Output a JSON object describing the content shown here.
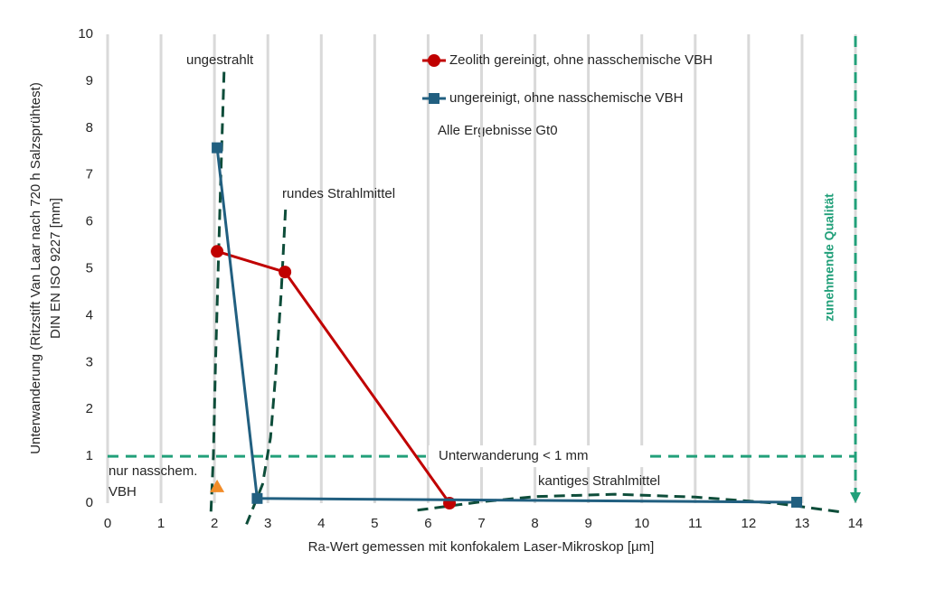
{
  "chart_data": {
    "type": "line",
    "x_label": "Ra-Wert gemessen mit konfokalem Laser-Mikroskop [µm]",
    "y_label": [
      "Unterwanderung (Ritzstift Van Laar  nach 720 h Salzsprühtest)",
      "DIN EN ISO 9227 [mm]"
    ],
    "xlim": [
      0,
      14
    ],
    "ylim": [
      0,
      10
    ],
    "xticks": [
      0,
      1,
      2,
      3,
      4,
      5,
      6,
      7,
      8,
      9,
      10,
      11,
      12,
      13,
      14
    ],
    "yticks": [
      0,
      1,
      2,
      3,
      4,
      5,
      6,
      7,
      8,
      9,
      10
    ],
    "grid": "x",
    "series": [
      {
        "name": "Zeolith gereinigt, ohne nasschemische VBH",
        "color": "#c00000",
        "marker": "circle",
        "x": [
          2.05,
          3.32,
          6.4
        ],
        "values": [
          5.37,
          4.93,
          0.0
        ]
      },
      {
        "name": "ungereinigt, ohne nasschemische VBH",
        "color": "#215f80",
        "marker": "square",
        "x": [
          2.05,
          2.8,
          12.9
        ],
        "values": [
          7.58,
          0.1,
          0.02
        ]
      },
      {
        "label": [
          "nur nasschem.",
          "VBH"
        ],
        "color": "#f28c28",
        "marker": "triangle",
        "x": [
          2.05
        ],
        "values": [
          0.35
        ]
      }
    ],
    "note": "Alle Ergebnisse Gt0",
    "guide_curves": [
      {
        "name": "ungestrahlt",
        "color": "#0e4d3a",
        "x": [
          2.18,
          2.12,
          2.07,
          2.02,
          1.98,
          1.93
        ],
        "values": [
          9.2,
          7,
          5,
          3,
          1,
          -0.3
        ]
      },
      {
        "name": "rundes Strahlmittel",
        "color": "#0e4d3a",
        "x": [
          3.33,
          3.25,
          3.15,
          3.05,
          2.9,
          2.6
        ],
        "values": [
          6.26,
          4.5,
          2.8,
          1.4,
          0.4,
          -0.45
        ]
      },
      {
        "name": "kantiges Strahlmittel",
        "color": "#0e4d3a",
        "x": [
          5.8,
          7,
          8,
          9.5,
          11,
          12.5,
          13.8
        ],
        "values": [
          -0.15,
          0.03,
          0.14,
          0.19,
          0.13,
          0,
          -0.2
        ]
      }
    ],
    "threshold": {
      "value": 1,
      "label": "Unterwanderung < 1 mm",
      "color": "#22a07a"
    },
    "arrow": {
      "label": "zunehmende Qualität",
      "color": "#22a07a"
    }
  }
}
